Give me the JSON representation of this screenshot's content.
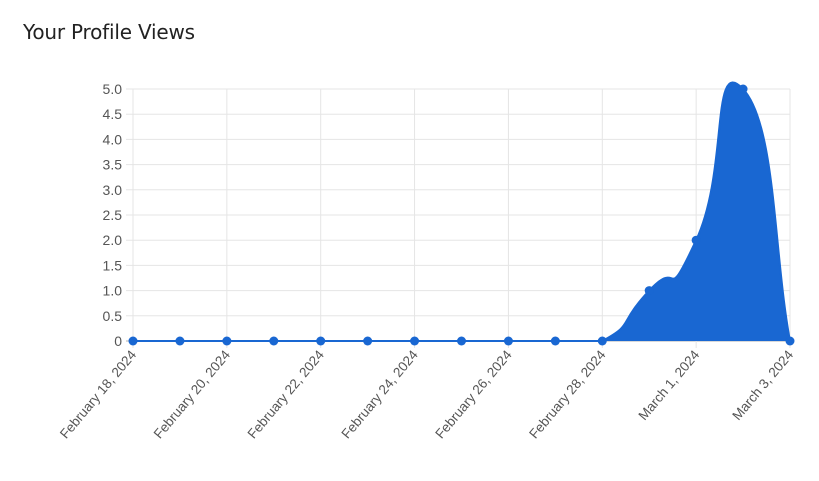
{
  "card": {
    "title": "Your Profile Views"
  },
  "chart_data": {
    "type": "area",
    "x": [
      "February 18, 2024",
      "February 19, 2024",
      "February 20, 2024",
      "February 21, 2024",
      "February 22, 2024",
      "February 23, 2024",
      "February 24, 2024",
      "February 25, 2024",
      "February 26, 2024",
      "February 27, 2024",
      "February 28, 2024",
      "February 29, 2024",
      "March 1, 2024",
      "March 2, 2024",
      "March 3, 2024"
    ],
    "values": [
      0,
      0,
      0,
      0,
      0,
      0,
      0,
      0,
      0,
      0,
      0,
      1,
      2,
      5,
      0
    ],
    "x_tick_labels": [
      "February 18, 2024",
      "February 20, 2024",
      "February 22, 2024",
      "February 24, 2024",
      "February 26, 2024",
      "February 28, 2024",
      "March 1, 2024",
      "March 3, 2024"
    ],
    "y_tick_labels": [
      "0",
      "0.5",
      "1.0",
      "1.5",
      "2.0",
      "2.5",
      "3.0",
      "3.5",
      "4.0",
      "4.5",
      "5.0"
    ],
    "ylim": [
      0,
      5
    ],
    "grid": true,
    "legend": "none",
    "colors": {
      "fill": "#1967d2",
      "point": "#1967d2",
      "grid": "#e5e5e5",
      "axis": "#b0b0b0"
    }
  }
}
